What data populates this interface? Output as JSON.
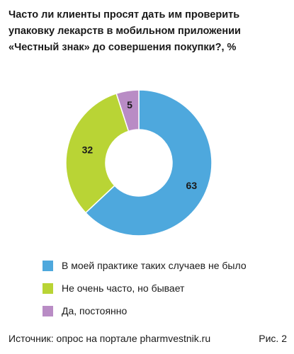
{
  "chart_data": {
    "type": "pie",
    "donut": true,
    "title": "Часто ли клиенты просят дать им проверить упаковку лекарств в мобильном приложении «Честный знак» до совершения покупки?, %",
    "categories": [
      "В моей практике таких случаев не было",
      "Не очень часто, но бывает",
      "Да, постоянно"
    ],
    "values": [
      63,
      32,
      5
    ],
    "colors": [
      "#4ea8dd",
      "#b9d435",
      "#b98cc5"
    ],
    "legend_position": "bottom"
  },
  "footer": {
    "source": "Источник: опрос на портале pharmvestnik.ru",
    "figure_label": "Рис. 2"
  }
}
